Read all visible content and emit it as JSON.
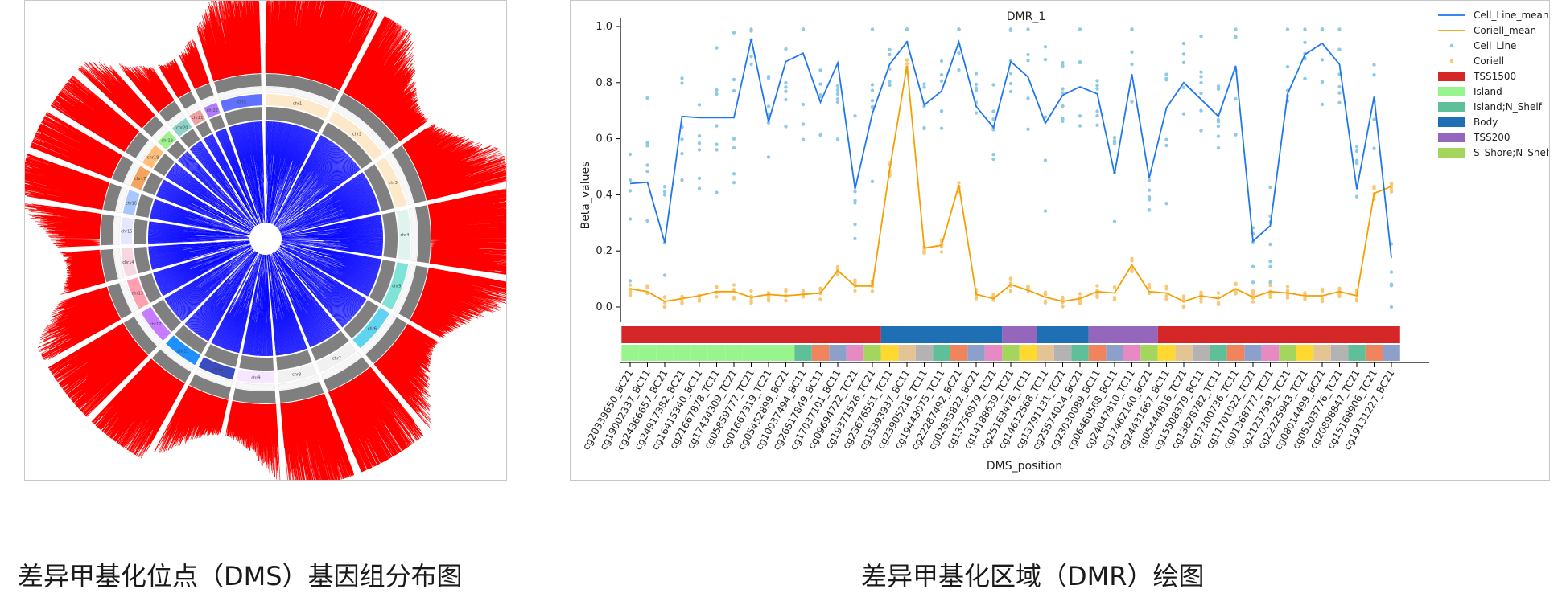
{
  "captions": {
    "left": "差异甲基化位点（DMS）基因组分布图",
    "right": "差异甲基化区域（DMR）绘图"
  },
  "colors": {
    "hyper": "#ff0000",
    "hypo": "#0000ff",
    "cell_line_mean": "#1f77f0",
    "coriell_mean": "#f5a000",
    "cell_line_point": "#8ecae6",
    "coriell_point": "#f8c87a"
  },
  "circos": {
    "chromosomes": [
      "chr1",
      "chr2",
      "chr3",
      "chr4",
      "chr5",
      "chr6",
      "chr7",
      "chr8",
      "chr9",
      "chr10",
      "chr11",
      "chr12",
      "chr13",
      "chr14",
      "chr15",
      "chr16",
      "chr17",
      "chr18",
      "chr19",
      "chr20",
      "chr21",
      "chr22",
      "chrX"
    ]
  },
  "chart_data": {
    "type": "line",
    "title": "DMR_1",
    "xlabel": "DMS_position",
    "ylabel": "Beta_values",
    "ylim": [
      0.0,
      1.0
    ],
    "yticks": [
      0.0,
      0.2,
      0.4,
      0.6,
      0.8,
      1.0
    ],
    "categories": [
      "cg20339650_BC21",
      "cg19002337_BC11",
      "cg24366657_BC21",
      "cg24917382_BC21",
      "cg16415340_BC11",
      "cg21667878_TC11",
      "cg17434309_TC21",
      "cg05859777_TC21",
      "cg01667319_TC21",
      "cg05452899_BC21",
      "cg10037494_BC11",
      "cg26517849_BC11",
      "cg17037101_BC11",
      "cg09694722_TC21",
      "cg19371526_TC21",
      "cg23676551_TC11",
      "cg15393937_BC11",
      "cg23905216_TC11",
      "cg19443075_TC11",
      "cg22287492_BC21",
      "cg02835822_BC21",
      "cg13756879_TC21",
      "cg14188639_TC21",
      "cg25163476_TC11",
      "cg14612568_TC11",
      "cg13791131_TC21",
      "cg25574024_BC21",
      "cg23030089_BC11",
      "cg06460568_BC11",
      "cg24047810_TC11",
      "cg17462140_BC21",
      "cg24431667_BC11",
      "cg05444816_TC21",
      "cg15508379_BC11",
      "cg13828782_TC11",
      "cg17300736_TC11",
      "cg11701022_TC21",
      "cg01368777_TC21",
      "cg21237591_TC21",
      "cg22225943_TC21",
      "cg08014499_BC21",
      "cg05203776_TC21",
      "cg20898847_TC21",
      "cg15168906_TC21",
      "cg19131227_BC21"
    ],
    "series": [
      {
        "name": "Cell_Line_mean",
        "values": [
          0.44,
          0.445,
          0.23,
          0.68,
          0.675,
          0.675,
          0.675,
          0.955,
          0.66,
          0.875,
          0.905,
          0.73,
          0.87,
          0.42,
          0.69,
          0.865,
          0.945,
          0.72,
          0.77,
          0.945,
          0.715,
          0.64,
          0.875,
          0.82,
          0.655,
          0.755,
          0.785,
          0.76,
          0.475,
          0.83,
          0.46,
          0.71,
          0.8,
          0.74,
          0.68,
          0.86,
          0.235,
          0.29,
          0.76,
          0.9,
          0.94,
          0.865,
          0.42,
          0.75,
          0.175
        ]
      },
      {
        "name": "Coriell_mean",
        "values": [
          0.065,
          0.055,
          0.02,
          0.03,
          0.04,
          0.055,
          0.055,
          0.035,
          0.045,
          0.04,
          0.045,
          0.05,
          0.13,
          0.075,
          0.075,
          0.49,
          0.86,
          0.21,
          0.22,
          0.435,
          0.045,
          0.03,
          0.08,
          0.06,
          0.035,
          0.02,
          0.03,
          0.055,
          0.05,
          0.15,
          0.055,
          0.05,
          0.02,
          0.04,
          0.03,
          0.065,
          0.035,
          0.055,
          0.05,
          0.04,
          0.04,
          0.055,
          0.04,
          0.405,
          0.43
        ]
      }
    ],
    "legend": {
      "placement": "top-right",
      "lines": [
        "Cell_Line_mean",
        "Coriell_mean"
      ],
      "points": [
        "Cell_Line",
        "Coriell"
      ],
      "regions": [
        {
          "name": "TSS1500",
          "color": "#d62728"
        },
        {
          "name": "Island",
          "color": "#98f48c"
        },
        {
          "name": "Island;N_Shelf",
          "color": "#5fbf99"
        },
        {
          "name": "Body",
          "color": "#1f6fb4"
        },
        {
          "name": "TSS200",
          "color": "#9467bd"
        },
        {
          "name": "S_Shore;N_Shelf",
          "color": "#a4d65e"
        }
      ]
    },
    "annotation_bands": {
      "feature_segments": [
        {
          "name": "TSS1500",
          "start": 0,
          "end": 14,
          "color": "#d62728"
        },
        {
          "name": "Body",
          "start": 15,
          "end": 21,
          "color": "#1f6fb4"
        },
        {
          "name": "TSS200",
          "start": 22,
          "end": 23,
          "color": "#9467bd"
        },
        {
          "name": "Body",
          "start": 24,
          "end": 26,
          "color": "#1f6fb4"
        },
        {
          "name": "TSS200",
          "start": 27,
          "end": 30,
          "color": "#9467bd"
        },
        {
          "name": "TSS1500",
          "start": 31,
          "end": 44,
          "color": "#d62728"
        }
      ],
      "relation_colors": [
        "#98f48c",
        "#98f48c",
        "#98f48c",
        "#98f48c",
        "#98f48c",
        "#98f48c",
        "#98f48c",
        "#98f48c",
        "#98f48c",
        "#98f48c",
        "#5fbf99",
        "#f0845c",
        "#8da0cb",
        "#e78ac3",
        "#a4d65e",
        "#ffd92f",
        "#e5c494",
        "#b3b3b3",
        "#5fbf99",
        "#f0845c",
        "#8da0cb",
        "#e78ac3",
        "#a4d65e",
        "#ffd92f",
        "#e5c494",
        "#b3b3b3",
        "#5fbf99",
        "#f0845c",
        "#8da0cb",
        "#e78ac3",
        "#a4d65e",
        "#ffd92f",
        "#e5c494",
        "#b3b3b3",
        "#5fbf99",
        "#f0845c",
        "#8da0cb",
        "#e78ac3",
        "#a4d65e",
        "#ffd92f",
        "#e5c494",
        "#b3b3b3",
        "#5fbf99",
        "#f0845c",
        "#8da0cb"
      ]
    }
  }
}
